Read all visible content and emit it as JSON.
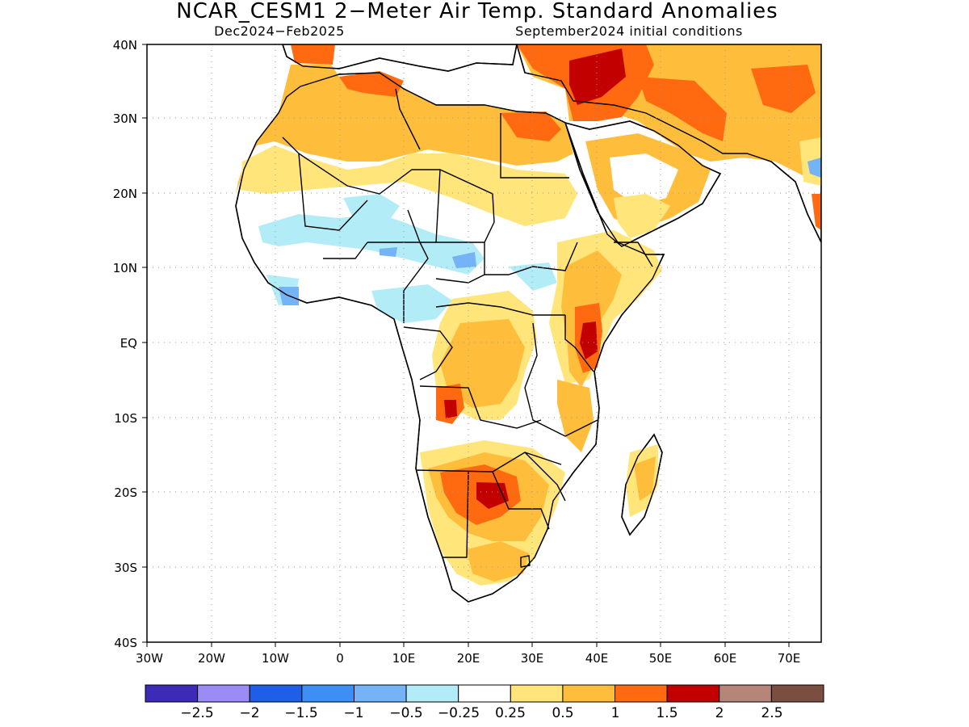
{
  "title": "NCAR_CESM1 2−Meter Air Temp. Standard Anomalies",
  "subtitle_left": "Dec2024−Feb2025",
  "subtitle_right": "September2024 initial conditions",
  "map": {
    "lat_labels": [
      "40N",
      "30N",
      "20N",
      "10N",
      "EQ",
      "10S",
      "20S",
      "30S",
      "40S"
    ],
    "lon_labels": [
      "30W",
      "20W",
      "10W",
      "0",
      "10E",
      "20E",
      "30E",
      "40E",
      "50E",
      "60E",
      "70E"
    ]
  },
  "colorbar": {
    "colors": [
      "#3d2bb8",
      "#9b8cf5",
      "#1f5fe8",
      "#3d8ff5",
      "#74b3f5",
      "#b2ecf7",
      "#ffffff",
      "#ffe57a",
      "#ffbd3c",
      "#ff6a10",
      "#c20000",
      "#b48578",
      "#7a4e40"
    ],
    "labels": [
      "−2.5",
      "−2",
      "−1.5",
      "−1",
      "−0.5",
      "−0.25",
      "0.25",
      "0.5",
      "1",
      "1.5",
      "2",
      "2.5"
    ]
  }
}
